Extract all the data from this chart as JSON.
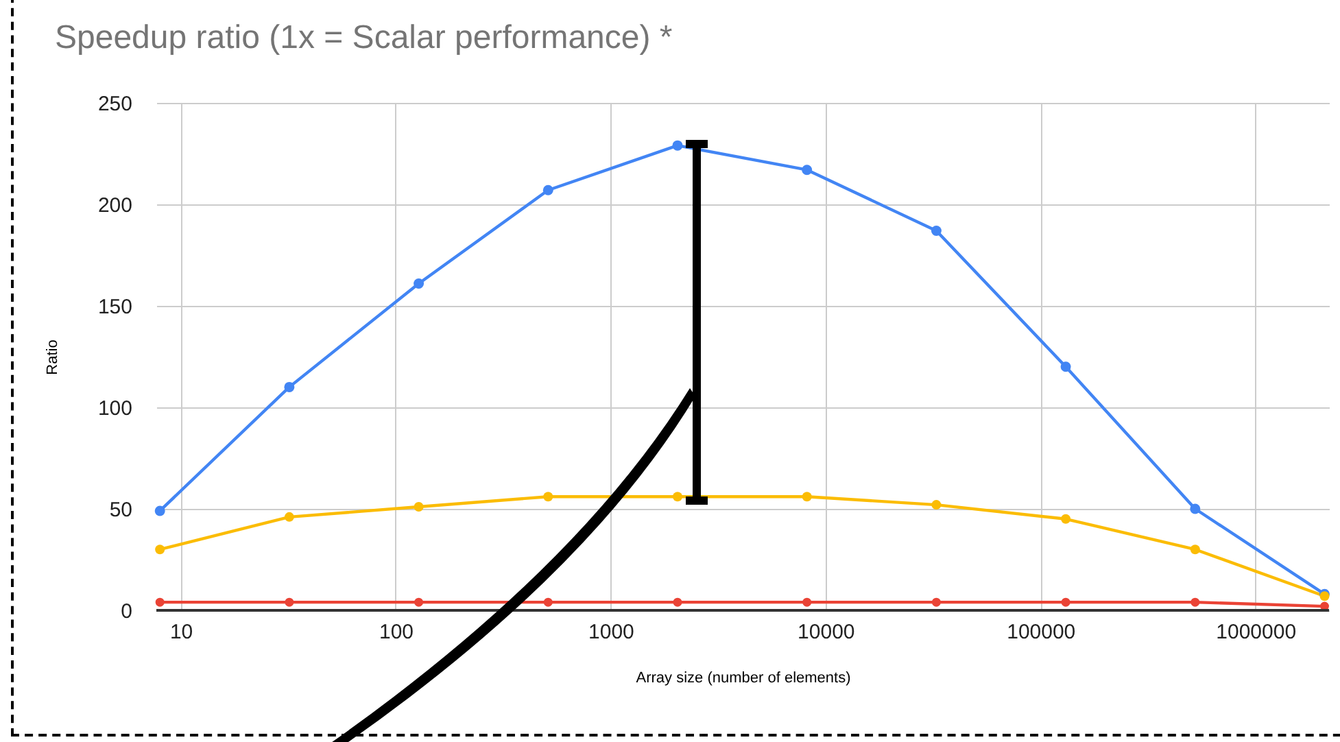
{
  "chart_data": {
    "type": "line",
    "title": "Speedup ratio (1x = Scalar performance) *",
    "xlabel": "Array size (number of elements)",
    "ylabel": "Ratio",
    "x": [
      8,
      32,
      128,
      512,
      2048,
      8192,
      32768,
      131072,
      524288,
      2097152
    ],
    "series": [
      {
        "color": "#4285f4",
        "values": [
          49,
          110,
          161,
          207,
          229,
          217,
          187,
          120,
          50,
          8
        ]
      },
      {
        "color": "#fbbc04",
        "values": [
          30,
          46,
          51,
          56,
          56,
          56,
          52,
          45,
          30,
          7
        ]
      },
      {
        "color": "#ea4335",
        "values": [
          4,
          4,
          4,
          4,
          4,
          4,
          4,
          4,
          4,
          2
        ]
      }
    ],
    "log": "x",
    "xlim": [
      7.7,
      2200000
    ],
    "xticks": [
      10,
      100,
      1000,
      10000,
      100000,
      1000000
    ],
    "ylim": [
      0,
      250
    ],
    "yticks": [
      0,
      50,
      100,
      150,
      200,
      250
    ],
    "grid": true,
    "marker": "circle",
    "line_style": "solid"
  }
}
